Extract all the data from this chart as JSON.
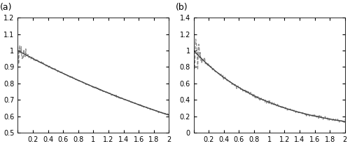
{
  "K": 0.5,
  "xlim": [
    0,
    2
  ],
  "panel_a": {
    "label": "(a)",
    "ylim": [
      0.5,
      1.2
    ],
    "yticks": [
      0.5,
      0.6,
      0.7,
      0.8,
      0.9,
      1.0,
      1.1,
      1.2
    ],
    "xticks": [
      0,
      0.2,
      0.4,
      0.6,
      0.8,
      1.0,
      1.2,
      1.4,
      1.6,
      1.8,
      2.0
    ],
    "xticklabels": [
      "",
      "0.2",
      "0.4",
      "0.6",
      "0.8",
      "1",
      "1.2",
      "1.4",
      "1.6",
      "1.8",
      "2"
    ],
    "yticklabels": [
      "0.5",
      "0.6",
      "0.7",
      "0.8",
      "0.9",
      "1",
      "1.1",
      "1.2"
    ],
    "solid_alpha_exp": 0.25,
    "noise_envelope_scale": 0.06,
    "noise_envelope_decay": 15,
    "noise_uniform_scale": 0.003
  },
  "panel_b": {
    "label": "(b)",
    "ylim": [
      0,
      1.4
    ],
    "yticks": [
      0,
      0.2,
      0.4,
      0.6,
      0.8,
      1.0,
      1.2,
      1.4
    ],
    "xticks": [
      0,
      0.2,
      0.4,
      0.6,
      0.8,
      1.0,
      1.2,
      1.4,
      1.6,
      1.8,
      2.0
    ],
    "xticklabels": [
      "",
      "0.2",
      "0.4",
      "0.6",
      "0.8",
      "1",
      "1.2",
      "1.4",
      "1.6",
      "1.8",
      "2"
    ],
    "yticklabels": [
      "0",
      "0.2",
      "0.4",
      "0.6",
      "0.8",
      "1",
      "1.2",
      "1.4"
    ],
    "solid_alpha_exp": 1.0,
    "noise_envelope_scale": 0.35,
    "noise_envelope_decay": 20,
    "noise_uniform_scale": 0.01
  },
  "solid_color": "#444444",
  "dashed_color": "#888888",
  "solid_linewidth": 1.0,
  "dashed_linewidth": 0.9,
  "dashed_style": "--",
  "n_points": 300,
  "seed": 7,
  "tick_labelsize": 7,
  "label_fontsize": 9
}
